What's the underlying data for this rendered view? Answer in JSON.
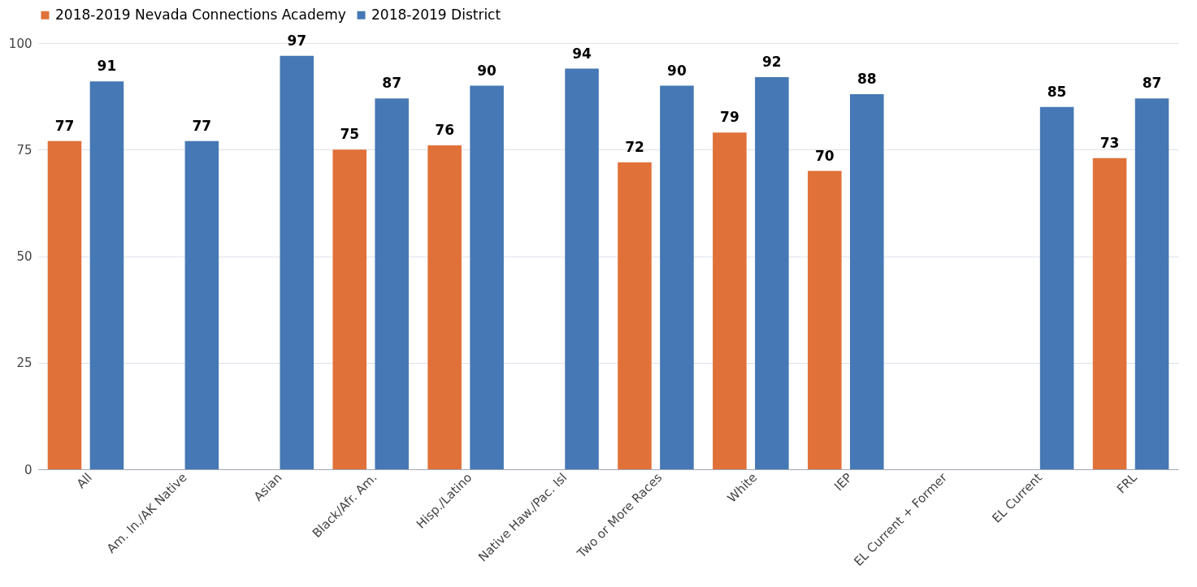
{
  "chart_data": {
    "type": "bar",
    "categories": [
      "All",
      "Am. In./AK Native",
      "Asian",
      "Black/Afr. Am.",
      "Hisp./Latino",
      "Native Haw./Pac. Isl",
      "Two or More Races",
      "White",
      "IEP",
      "EL Current + Former",
      "EL Current",
      "FRL"
    ],
    "series": [
      {
        "name": "2018-2019 Nevada Connections Academy",
        "color": "#e07138",
        "values": [
          77,
          null,
          null,
          75,
          76,
          null,
          72,
          79,
          70,
          null,
          null,
          73
        ]
      },
      {
        "name": "2018-2019 District",
        "color": "#4578b4",
        "values": [
          91,
          77,
          97,
          87,
          90,
          94,
          90,
          92,
          88,
          null,
          85,
          87
        ]
      }
    ],
    "ylim": [
      0,
      100
    ],
    "yticks": [
      0,
      25,
      50,
      75,
      100
    ],
    "grid": "y",
    "legend": "top",
    "data_labels": true
  }
}
